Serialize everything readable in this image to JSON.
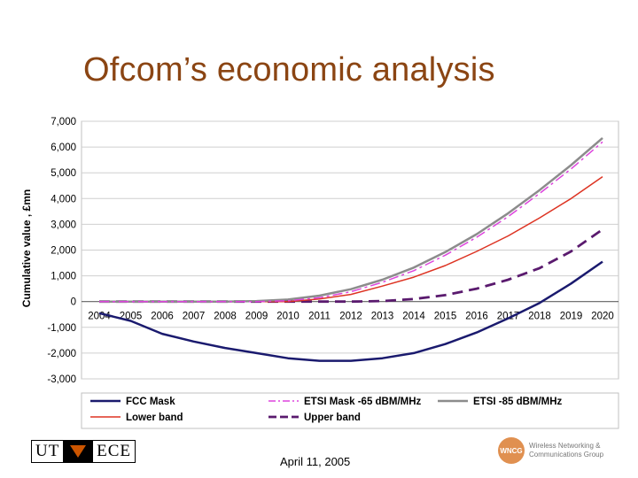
{
  "slide": {
    "title": "Ofcom’s economic analysis",
    "date": "April 11, 2005"
  },
  "logos": {
    "ut_left": "UT",
    "ut_right": "ECE",
    "wncg_mark": "WNCG",
    "wncg_line1": "Wireless Networking &",
    "wncg_line2": "Communications Group"
  },
  "chart_data": {
    "type": "line",
    "title": "",
    "xlabel": "",
    "ylabel": "Cumulative value , £mn",
    "ylim": [
      -3000,
      7000
    ],
    "yticks": [
      7000,
      6000,
      5000,
      4000,
      3000,
      2000,
      1000,
      0,
      -1000,
      -2000,
      -3000
    ],
    "ytick_labels": [
      "7,000",
      "6,000",
      "5,000",
      "4,000",
      "3,000",
      "2,000",
      "1,000",
      "0",
      "-1,000",
      "-2,000",
      "-3,000"
    ],
    "x": [
      "2004",
      "2005",
      "2006",
      "2007",
      "2008",
      "2009",
      "2010",
      "2011",
      "2012",
      "2013",
      "2014",
      "2015",
      "2016",
      "2017",
      "2018",
      "2019",
      "2020"
    ],
    "grid": true,
    "legend_position": "bottom",
    "series": [
      {
        "name": "FCC Mask",
        "color": "#1a1a6e",
        "style": "solid",
        "values": [
          -450,
          -750,
          -1250,
          -1550,
          -1800,
          -2000,
          -2200,
          -2300,
          -2300,
          -2200,
          -2000,
          -1650,
          -1200,
          -650,
          -50,
          700,
          1550
        ]
      },
      {
        "name": "ETSI Mask -65 dBM/MHz",
        "color": "#dd44dd",
        "style": "dashdot",
        "values": [
          0,
          0,
          0,
          0,
          0,
          0,
          30,
          150,
          380,
          750,
          1200,
          1800,
          2500,
          3300,
          4200,
          5150,
          6200
        ]
      },
      {
        "name": "ETSI -85 dBM/MHz",
        "color": "#8c8c8c",
        "style": "solid",
        "values": [
          0,
          0,
          0,
          0,
          0,
          20,
          80,
          230,
          480,
          850,
          1320,
          1920,
          2620,
          3430,
          4330,
          5300,
          6350
        ]
      },
      {
        "name": "Lower band",
        "color": "#dd3322",
        "style": "solid",
        "values": [
          0,
          0,
          0,
          0,
          0,
          0,
          0,
          100,
          280,
          600,
          950,
          1400,
          1950,
          2550,
          3250,
          4000,
          4850
        ]
      },
      {
        "name": "Upper band",
        "color": "#5a1a6e",
        "style": "dashed",
        "values": [
          0,
          0,
          0,
          0,
          0,
          0,
          0,
          0,
          0,
          20,
          100,
          250,
          500,
          850,
          1300,
          1950,
          2800
        ]
      }
    ]
  }
}
